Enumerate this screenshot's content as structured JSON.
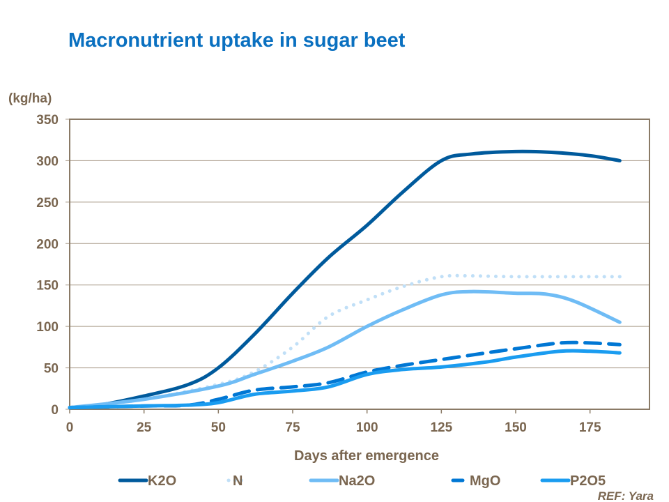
{
  "chart_data": {
    "type": "line",
    "title": "Macronutrient uptake in sugar beet",
    "ylabel": "(kg/ha)",
    "xlabel": "Days after emergence",
    "xlim": [
      0,
      195
    ],
    "ylim": [
      0,
      350
    ],
    "xticks": [
      0,
      25,
      50,
      75,
      100,
      125,
      150,
      175
    ],
    "yticks": [
      0,
      50,
      100,
      150,
      200,
      250,
      300,
      350
    ],
    "grid": "horizontal",
    "legend": "bottom",
    "reference": "REF: Yara",
    "series": [
      {
        "name": "K2O",
        "color": "#005a9c",
        "style": "solid",
        "x": [
          0,
          10,
          25,
          40,
          50,
          62,
          75,
          87,
          100,
          112,
          125,
          135,
          150,
          162,
          175,
          185
        ],
        "y": [
          2,
          5,
          16,
          30,
          50,
          90,
          140,
          183,
          222,
          262,
          300,
          308,
          311,
          310,
          306,
          300
        ]
      },
      {
        "name": "N",
        "color": "#c0dff7",
        "style": "dotted",
        "x": [
          0,
          25,
          50,
          62,
          75,
          87,
          100,
          112,
          125,
          135,
          150,
          185
        ],
        "y": [
          2,
          12,
          30,
          45,
          75,
          112,
          132,
          148,
          160,
          161,
          160,
          160
        ]
      },
      {
        "name": "Na2O",
        "color": "#6fbcf5",
        "style": "solid",
        "x": [
          0,
          25,
          50,
          62,
          75,
          87,
          100,
          112,
          125,
          135,
          150,
          160,
          170,
          185
        ],
        "y": [
          2,
          12,
          28,
          42,
          58,
          75,
          100,
          120,
          138,
          142,
          140,
          139,
          130,
          105
        ]
      },
      {
        "name": "MgO",
        "color": "#0077d4",
        "style": "dashed",
        "x": [
          0,
          25,
          40,
          50,
          62,
          75,
          87,
          100,
          112,
          125,
          140,
          150,
          165,
          175,
          185
        ],
        "y": [
          2,
          4,
          5,
          12,
          23,
          27,
          32,
          45,
          53,
          60,
          68,
          73,
          80,
          80,
          78
        ]
      },
      {
        "name": "P2O5",
        "color": "#1a9cf0",
        "style": "solid",
        "x": [
          0,
          25,
          40,
          50,
          62,
          75,
          87,
          100,
          112,
          125,
          140,
          150,
          165,
          175,
          185
        ],
        "y": [
          2,
          4,
          5,
          8,
          18,
          22,
          27,
          42,
          48,
          51,
          57,
          63,
          70,
          70,
          68
        ]
      }
    ]
  }
}
